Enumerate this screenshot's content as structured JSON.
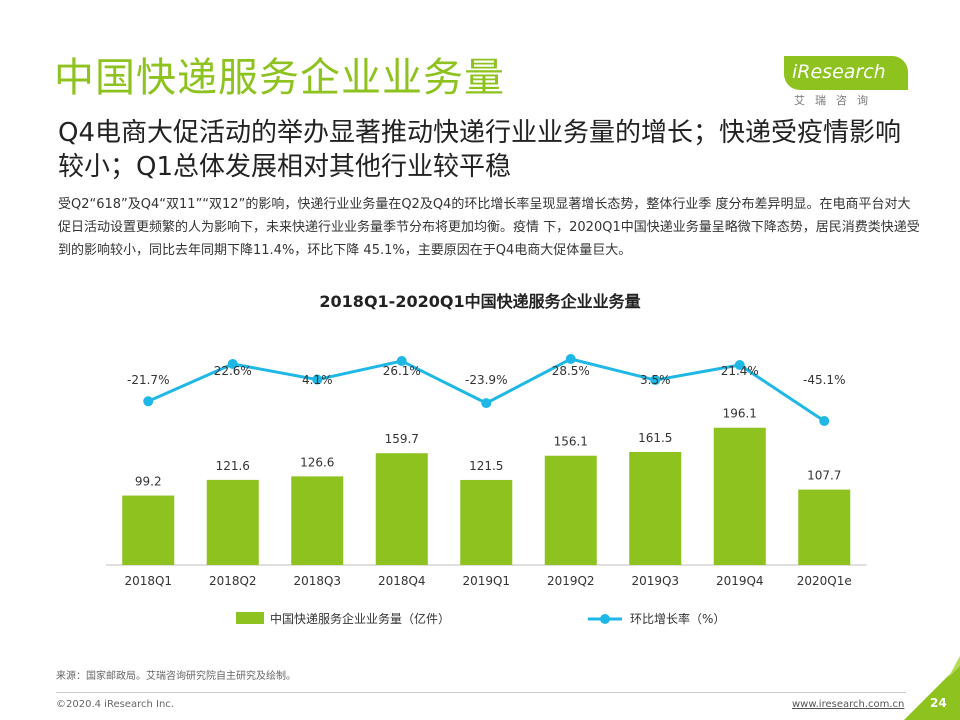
{
  "header": {
    "title": "中国快递服务企业业务量",
    "logo_text": "iResearch",
    "logo_sub": "艾瑞咨询"
  },
  "subtitle": "Q4电商大促活动的举办显著推动快递行业业务量的增长；快递受疫情影响较小；Q1总体发展相对其他行业较平稳",
  "description": "受Q2“618”及Q4“双11”“双12”的影响，快递行业业务量在Q2及Q4的环比增长率呈现显著增长态势，整体行业季 度分布差异明显。在电商平台对大促日活动设置更频繁的人为影响下，未来快递行业业务量季节分布将更加均衡。疫情 下，2020Q1中国快递业务量呈略微下降态势，居民消费类快递受到的影响较小，同比去年同期下降11.4%，环比下降 45.1%，主要原因在于Q4电商大促体量巨大。",
  "colors": {
    "accent": "#8dc21f",
    "line": "#1fb8e6"
  },
  "chart_data": {
    "type": "bar",
    "title": "2018Q1-2020Q1中国快递服务企业业务量",
    "categories": [
      "2018Q1",
      "2018Q2",
      "2018Q3",
      "2018Q4",
      "2019Q1",
      "2019Q2",
      "2019Q3",
      "2019Q4",
      "2020Q1e"
    ],
    "series": [
      {
        "name": "中国快递服务企业业务量（亿件）",
        "type": "bar",
        "values": [
          99.2,
          121.6,
          126.6,
          159.7,
          121.5,
          156.1,
          161.5,
          196.1,
          107.7
        ]
      },
      {
        "name": "环比增长率（%）",
        "type": "line",
        "values": [
          -21.7,
          22.6,
          4.1,
          26.1,
          -23.9,
          28.5,
          3.5,
          21.4,
          -45.1
        ],
        "labels": [
          "-21.7%",
          "22.6%",
          "4.1%",
          "26.1%",
          "-23.9%",
          "28.5%",
          "3.5%",
          "21.4%",
          "-45.1%"
        ]
      }
    ],
    "legend_position": "bottom"
  },
  "footer": {
    "source": "来源：国家邮政局。艾瑞咨询研究院自主研究及绘制。",
    "copyright": "©2020.4 iResearch Inc.",
    "website": "www.iresearch.com.cn",
    "page_number": "24"
  }
}
